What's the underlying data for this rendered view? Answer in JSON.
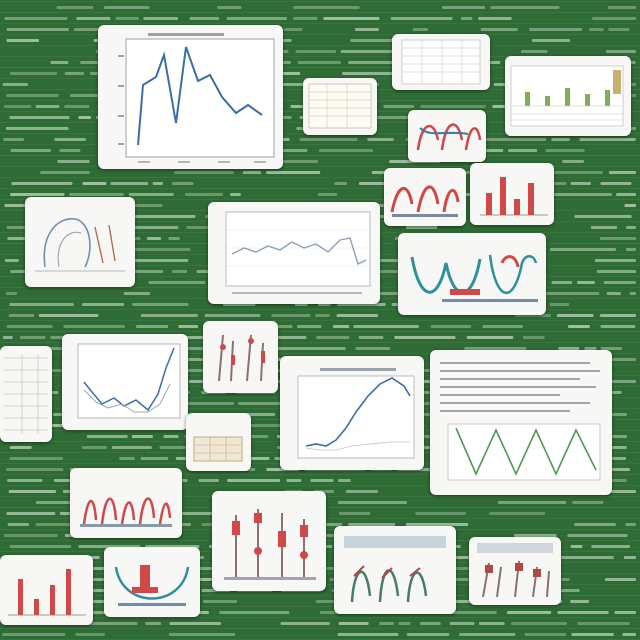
{
  "board": {
    "background_color": "#2f6b34",
    "scribble_color": "#cfe3cf"
  },
  "cards": [
    {
      "id": "c1",
      "kind": "line-chart",
      "accent": "#3a6ea8"
    },
    {
      "id": "c2",
      "kind": "table",
      "accent": "#9aa6b2"
    },
    {
      "id": "c3",
      "kind": "table-bars",
      "accent": "#7fae5a"
    },
    {
      "id": "c4",
      "kind": "table",
      "accent": "#b7b0a0"
    },
    {
      "id": "c5",
      "kind": "illustration",
      "accent": "#d04848"
    },
    {
      "id": "c6",
      "kind": "illustration",
      "accent": "#d04848"
    },
    {
      "id": "c7",
      "kind": "bar-chart",
      "accent": "#d04848"
    },
    {
      "id": "c8",
      "kind": "sketch",
      "accent": "#6d8fb0"
    },
    {
      "id": "c9",
      "kind": "line-chart",
      "accent": "#8aa0b4"
    },
    {
      "id": "c10",
      "kind": "illustration",
      "accent": "#2f8f9f"
    },
    {
      "id": "c11",
      "kind": "table",
      "accent": "#9aa6b2"
    },
    {
      "id": "c12",
      "kind": "line-chart",
      "accent": "#3a6ea8"
    },
    {
      "id": "c13",
      "kind": "illustration",
      "accent": "#d04848"
    },
    {
      "id": "c14",
      "kind": "line-chart",
      "accent": "#3a6ea8"
    },
    {
      "id": "c15",
      "kind": "line-chart",
      "accent": "#4f9a4f"
    },
    {
      "id": "c16",
      "kind": "table",
      "accent": "#c8a878"
    },
    {
      "id": "c17",
      "kind": "illustration",
      "accent": "#d04848"
    },
    {
      "id": "c18",
      "kind": "illustration",
      "accent": "#d04848"
    },
    {
      "id": "c19",
      "kind": "bar-chart",
      "accent": "#d04848"
    },
    {
      "id": "c20",
      "kind": "illustration",
      "accent": "#2f8f9f"
    },
    {
      "id": "c21",
      "kind": "illustration",
      "accent": "#4a7a6a"
    },
    {
      "id": "c22",
      "kind": "illustration",
      "accent": "#b04848"
    }
  ]
}
